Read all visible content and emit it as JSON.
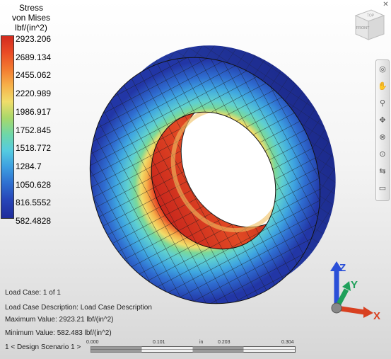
{
  "legend": {
    "title_line1": "Stress",
    "title_line2": "von Mises",
    "title_line3": "lbf/(in^2)",
    "values": [
      "2923.206",
      "2689.134",
      "2455.062",
      "2220.989",
      "1986.917",
      "1752.845",
      "1518.772",
      "1284.7",
      "1050.628",
      "816.5552",
      "582.4828"
    ]
  },
  "view_cube": {
    "top_face": "TOP",
    "front_face": "FRONT"
  },
  "nav_bar": {
    "tools": [
      "steering-wheel-icon",
      "pan-icon",
      "zoom-icon",
      "orbit-icon",
      "center-icon",
      "look-icon",
      "walk-icon",
      "fit-icon"
    ]
  },
  "info": {
    "load_case": "Load Case:  1 of 1",
    "load_case_description": "Load Case Description:  Load Case Description",
    "maximum_value": "Maximum Value: 2923.21 lbf/(in^2)",
    "minimum_value": "Minimum Value: 582.483 lbf/(in^2)"
  },
  "design_scenario": "1 < Design Scenario 1 >",
  "scale_bar": {
    "labels": [
      "0.000",
      "0.101",
      "in",
      "0.203",
      "0.304"
    ]
  },
  "triad": {
    "z": "Z",
    "y": "Y",
    "x": "X"
  },
  "colors": {
    "max_stress": "#d22a1e",
    "min_stress": "#1f2c9a",
    "z_axis": "#2a4fd8",
    "y_axis": "#1fa05a",
    "x_axis": "#d84020"
  }
}
